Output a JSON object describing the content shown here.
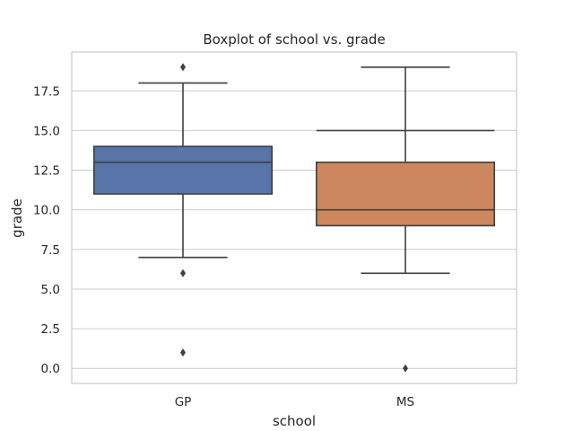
{
  "chart_data": {
    "type": "box",
    "title": "Boxplot of school vs. grade",
    "xlabel": "school",
    "ylabel": "grade",
    "ylim": [
      -0.95,
      19.95
    ],
    "yticks": [
      0.0,
      2.5,
      5.0,
      7.5,
      10.0,
      12.5,
      15.0,
      17.5
    ],
    "ytick_labels": [
      "0.0",
      "2.5",
      "5.0",
      "7.5",
      "10.0",
      "12.5",
      "15.0",
      "17.5"
    ],
    "grid": true,
    "categories": [
      "GP",
      "MS"
    ],
    "boxes": [
      {
        "category": "GP",
        "whisker_low": 7,
        "q1": 11,
        "median": 13,
        "q3": 14,
        "whisker_high": 18,
        "outliers": [
          19,
          6,
          1
        ],
        "color": "#5874a9"
      },
      {
        "category": "MS",
        "whisker_low": 6,
        "q1": 9,
        "median": 10,
        "q3": 13,
        "whisker_high": 19,
        "outliers": [
          0
        ],
        "extra_line": 15,
        "color": "#cd875e"
      }
    ],
    "colors": {
      "grid": "#cccccc",
      "frame": "#cccccc",
      "line": "#3f3f3f",
      "text": "#262626"
    }
  }
}
